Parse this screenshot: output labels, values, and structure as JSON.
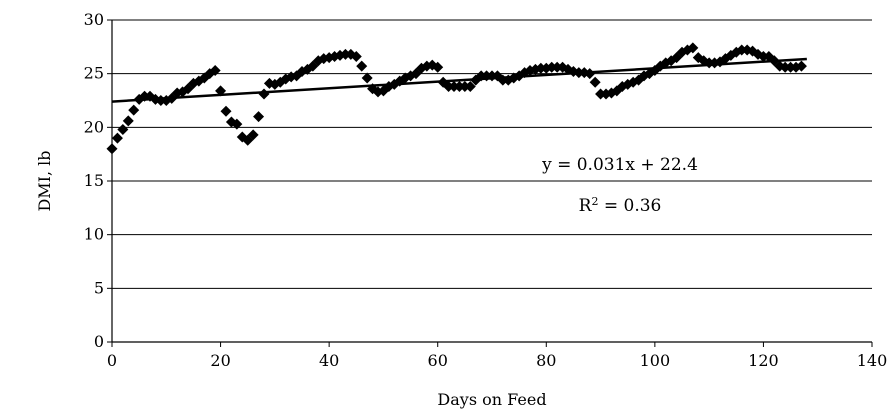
{
  "chart_data": {
    "type": "scatter",
    "xlabel": "Days on Feed",
    "ylabel": "DMI, lb",
    "xlim": [
      0,
      140
    ],
    "ylim": [
      0,
      30
    ],
    "x_ticks": [
      "0",
      "20",
      "40",
      "60",
      "80",
      "100",
      "120",
      "140"
    ],
    "y_ticks": [
      "0",
      "5",
      "10",
      "15",
      "20",
      "25",
      "30"
    ],
    "grid": "horizontal",
    "marker": "diamond",
    "marker_color": "#000000",
    "series": [
      {
        "x": [
          0,
          1,
          2,
          3,
          4,
          5,
          6,
          7,
          8,
          9,
          10,
          11,
          12,
          13,
          14,
          15,
          16,
          17,
          18,
          19,
          20,
          21,
          22,
          23,
          24,
          25,
          26,
          27,
          28,
          29,
          30,
          31,
          32,
          33,
          34,
          35,
          36,
          37,
          38,
          39,
          40,
          41,
          42,
          43,
          44,
          45,
          46,
          47,
          48,
          49,
          50,
          51,
          52,
          53,
          54,
          55,
          56,
          57,
          58,
          59,
          60,
          61,
          62,
          63,
          64,
          65,
          66,
          67,
          68,
          69,
          70,
          71,
          72,
          73,
          74,
          75,
          76,
          77,
          78,
          79,
          80,
          81,
          82,
          83,
          84,
          85,
          86,
          87,
          88,
          89,
          90,
          91,
          92,
          93,
          94,
          95,
          96,
          97,
          98,
          99,
          100,
          101,
          102,
          103,
          104,
          105,
          106,
          107,
          108,
          109,
          110,
          111,
          112,
          113,
          114,
          115,
          116,
          117,
          118,
          119,
          120,
          121,
          122,
          123,
          124,
          125,
          126,
          127
        ],
        "y": [
          18.0,
          19.0,
          19.8,
          20.6,
          21.6,
          22.6,
          22.9,
          22.9,
          22.6,
          22.5,
          22.5,
          22.7,
          23.2,
          23.3,
          23.6,
          24.1,
          24.3,
          24.6,
          25.0,
          25.3,
          23.4,
          21.5,
          20.5,
          20.3,
          19.1,
          18.8,
          19.3,
          21.0,
          23.1,
          24.1,
          24.0,
          24.2,
          24.5,
          24.7,
          24.8,
          25.2,
          25.4,
          25.7,
          26.2,
          26.4,
          26.5,
          26.6,
          26.7,
          26.8,
          26.8,
          26.6,
          25.7,
          24.6,
          23.6,
          23.3,
          23.4,
          23.8,
          24.0,
          24.3,
          24.6,
          24.8,
          25.0,
          25.5,
          25.7,
          25.8,
          25.6,
          24.2,
          23.8,
          23.8,
          23.8,
          23.8,
          23.8,
          24.4,
          24.8,
          24.8,
          24.8,
          24.8,
          24.4,
          24.4,
          24.6,
          24.8,
          25.1,
          25.3,
          25.4,
          25.5,
          25.5,
          25.6,
          25.6,
          25.6,
          25.4,
          25.2,
          25.1,
          25.1,
          25.0,
          24.2,
          23.1,
          23.1,
          23.2,
          23.4,
          23.8,
          24.0,
          24.2,
          24.4,
          24.8,
          25.0,
          25.3,
          25.7,
          26.0,
          26.2,
          26.5,
          27.0,
          27.2,
          27.4,
          26.5,
          26.2,
          26.0,
          26.0,
          26.1,
          26.4,
          26.7,
          27.0,
          27.2,
          27.2,
          27.1,
          26.8,
          26.6,
          26.6,
          26.2,
          25.7,
          25.6,
          25.6,
          25.6,
          25.7
        ]
      }
    ],
    "trendline": {
      "slope": 0.031,
      "intercept": 22.4,
      "x_range": [
        0,
        128
      ]
    },
    "annotations": {
      "equation": "y = 0.031x + 22.4",
      "r2_base": "R",
      "r2_sup": "2",
      "r2_rest": " = 0.36"
    }
  }
}
